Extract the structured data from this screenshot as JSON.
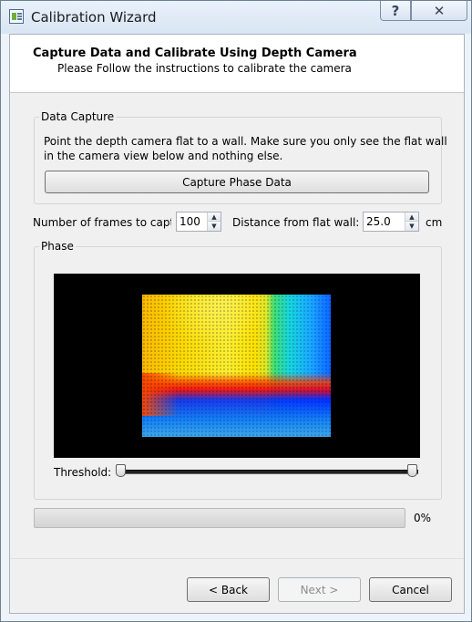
{
  "window": {
    "title": "Calibration Wizard",
    "help_glyph": "?",
    "close_glyph": "✕"
  },
  "header": {
    "title": "Capture Data and Calibrate Using Depth Camera",
    "subtitle": "Please Follow the instructions to calibrate the camera"
  },
  "data_capture": {
    "group_label": "Data Capture",
    "instruction_line1": "Point the depth camera flat to a wall. Make sure you only see the flat wall",
    "instruction_line2": "in the camera view below and nothing else.",
    "capture_button": "Capture Phase Data"
  },
  "settings": {
    "frames_label": "Number of frames to captu",
    "frames_value": "100",
    "distance_label": "Distance from flat wall:",
    "distance_value": "25.0",
    "distance_unit": "cm"
  },
  "phase": {
    "group_label": "Phase",
    "threshold_label": "Threshold:",
    "threshold_min_fraction": 0.0,
    "threshold_max_fraction": 1.0
  },
  "progress": {
    "value_percent": 0,
    "text": "0%"
  },
  "footer": {
    "back_label": "< Back",
    "next_label": "Next >",
    "cancel_label": "Cancel"
  },
  "icons": {
    "app": "app-window-icon",
    "spin_up": "spin-up-arrow-icon",
    "spin_down": "spin-down-arrow-icon"
  }
}
